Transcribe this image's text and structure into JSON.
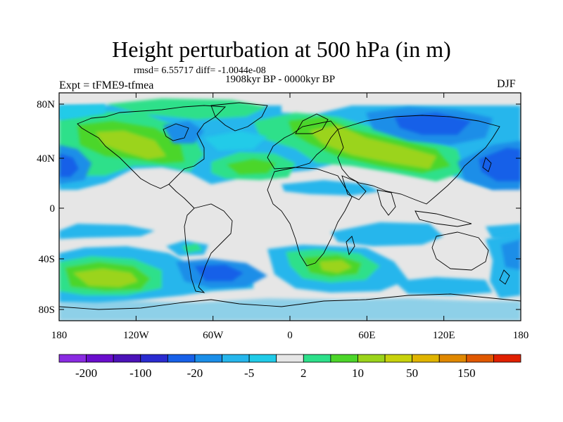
{
  "title": "Height perturbation at 500 hPa (in m)",
  "stats": "rmsd= 6.55717  diff= -1.0044e-08",
  "period": "1908kyr BP - 0000kyr BP",
  "experiment": "Expt = tFME9-tfmea",
  "season": "DJF",
  "lat_labels": [
    "80N",
    "40N",
    "0",
    "40S",
    "80S"
  ],
  "lon_labels": [
    "180",
    "120W",
    "60W",
    "0",
    "60E",
    "120E",
    "180"
  ],
  "colorbar": {
    "colors": [
      "#8a2be2",
      "#6a0dcd",
      "#4b12b8",
      "#2a2bd0",
      "#1760e8",
      "#1a8ee8",
      "#26b6ec",
      "#20cbe8",
      "#e6e6e6",
      "#2de08a",
      "#4cd62a",
      "#9bd41a",
      "#c8d20c",
      "#e0b400",
      "#e08800",
      "#e05800",
      "#e02000"
    ],
    "labels": [
      "-200",
      "-100",
      "-20",
      "-5",
      "2",
      "10",
      "50",
      "150"
    ]
  },
  "palette": {
    "background": "#e6e6e6",
    "light_blue": "#26b6ec",
    "mid_blue": "#1a8ee8",
    "blue": "#1760e8",
    "deep_blue": "#2a2bd0",
    "cyan": "#20cbe8",
    "teal": "#2de08a",
    "green": "#4cd62a",
    "yellow_green": "#9bd41a",
    "olive": "#c8d20c",
    "orange": "#e0b400"
  }
}
